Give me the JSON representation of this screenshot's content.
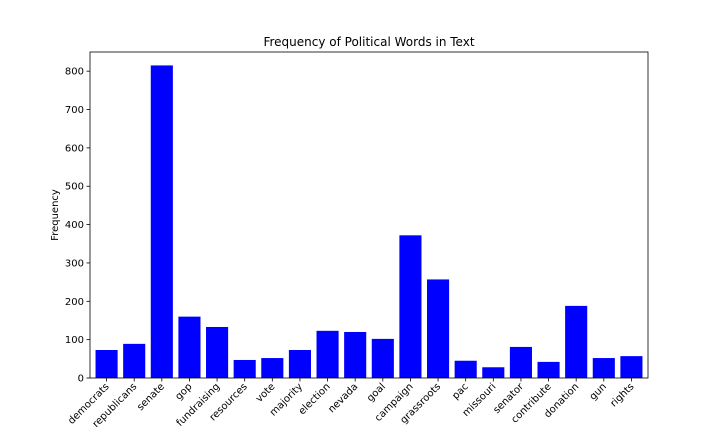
{
  "chart_data": {
    "type": "bar",
    "title": "Frequency of Political Words in Text",
    "xlabel": "",
    "ylabel": "Frequency",
    "ylim": [
      0,
      850
    ],
    "yticks": [
      0,
      100,
      200,
      300,
      400,
      500,
      600,
      700,
      800
    ],
    "bar_color": "#0000ff",
    "grid": false,
    "categories": [
      "democrats",
      "republicans",
      "senate",
      "gop",
      "fundraising",
      "resources",
      "vote",
      "majority",
      "election",
      "nevada",
      "goal",
      "campaign",
      "grassroots",
      "pac",
      "missouri",
      "senator",
      "contribute",
      "donation",
      "gun",
      "rights"
    ],
    "values": [
      73,
      89,
      815,
      160,
      133,
      47,
      52,
      73,
      123,
      120,
      102,
      372,
      257,
      45,
      28,
      81,
      42,
      188,
      52,
      57
    ]
  }
}
